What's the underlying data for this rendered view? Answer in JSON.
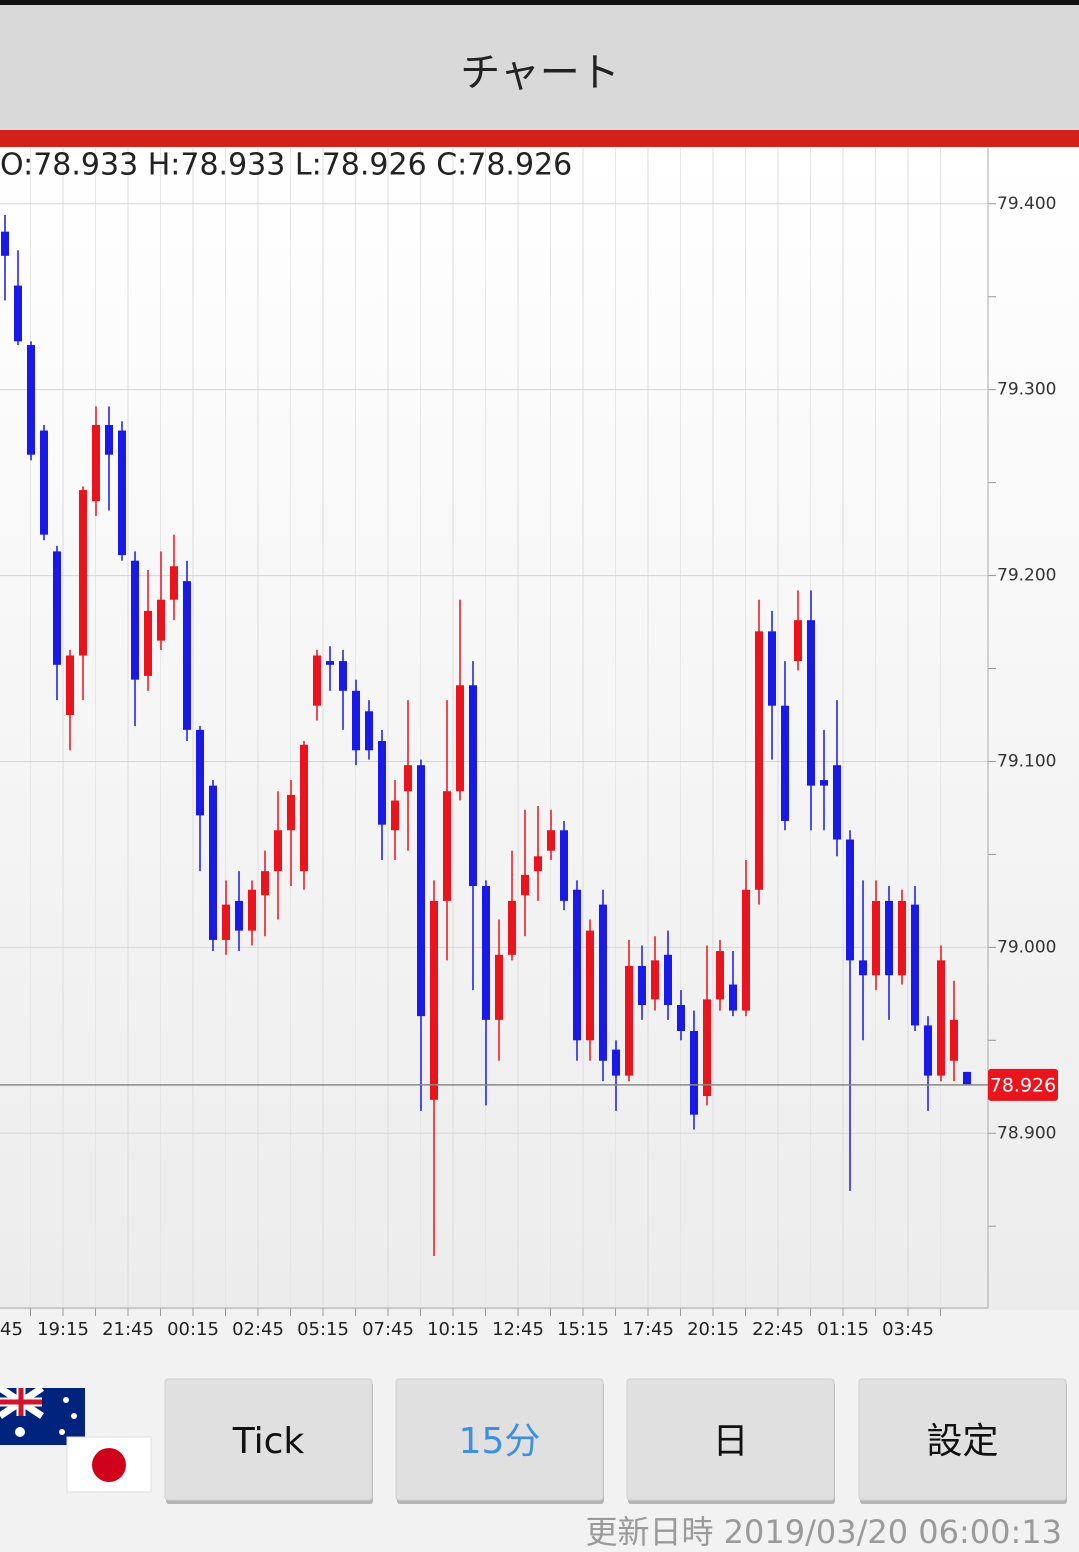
{
  "header": {
    "title": "チャート"
  },
  "chart_data": {
    "type": "candlestick",
    "ohlc_label": "O:78.933 H:78.933 L:78.926 C:78.926",
    "xlabels": [
      "45",
      "19:15",
      "21:45",
      "00:15",
      "02:45",
      "05:15",
      "07:45",
      "10:15",
      "12:45",
      "15:15",
      "17:45",
      "20:15",
      "22:45",
      "01:15",
      "03:45"
    ],
    "candles": [
      [
        79.385,
        79.394,
        79.348,
        79.372
      ],
      [
        79.356,
        79.375,
        79.324,
        79.326
      ],
      [
        79.324,
        79.326,
        79.262,
        79.265
      ],
      [
        79.278,
        79.281,
        79.219,
        79.222
      ],
      [
        79.213,
        79.216,
        79.133,
        79.152
      ],
      [
        79.125,
        79.16,
        79.106,
        79.157
      ],
      [
        79.157,
        79.248,
        79.133,
        79.246
      ],
      [
        79.24,
        79.291,
        79.232,
        79.281
      ],
      [
        79.281,
        79.291,
        79.235,
        79.265
      ],
      [
        79.278,
        79.283,
        79.208,
        79.211
      ],
      [
        79.208,
        79.213,
        79.119,
        79.144
      ],
      [
        79.146,
        79.203,
        79.138,
        79.181
      ],
      [
        79.165,
        79.213,
        79.16,
        79.187
      ],
      [
        79.187,
        79.222,
        79.176,
        79.205
      ],
      [
        79.197,
        79.208,
        79.111,
        79.117
      ],
      [
        79.117,
        79.119,
        79.041,
        79.071
      ],
      [
        79.087,
        79.09,
        78.998,
        79.004
      ],
      [
        79.004,
        79.036,
        78.996,
        79.023
      ],
      [
        79.025,
        79.041,
        78.998,
        79.009
      ],
      [
        79.009,
        79.036,
        79.001,
        79.031
      ],
      [
        79.028,
        79.052,
        79.006,
        79.041
      ],
      [
        79.041,
        79.084,
        79.015,
        79.063
      ],
      [
        79.063,
        79.09,
        79.033,
        79.082
      ],
      [
        79.041,
        79.111,
        79.031,
        79.109
      ],
      [
        79.13,
        79.16,
        79.122,
        79.157
      ],
      [
        79.154,
        79.162,
        79.138,
        79.152
      ],
      [
        79.154,
        79.16,
        79.117,
        79.138
      ],
      [
        79.138,
        79.144,
        79.098,
        79.106
      ],
      [
        79.127,
        79.133,
        79.101,
        79.106
      ],
      [
        79.111,
        79.117,
        79.047,
        79.066
      ],
      [
        79.063,
        79.09,
        79.047,
        79.079
      ],
      [
        79.084,
        79.133,
        79.052,
        79.098
      ],
      [
        79.098,
        79.101,
        78.912,
        78.963
      ],
      [
        78.918,
        79.036,
        78.834,
        79.025
      ],
      [
        79.025,
        79.133,
        78.993,
        79.084
      ],
      [
        79.084,
        79.187,
        79.079,
        79.141
      ],
      [
        79.141,
        79.154,
        78.977,
        79.033
      ],
      [
        79.033,
        79.036,
        78.915,
        78.961
      ],
      [
        78.961,
        79.015,
        78.939,
        78.996
      ],
      [
        78.996,
        79.052,
        78.993,
        79.025
      ],
      [
        79.028,
        79.074,
        79.006,
        79.039
      ],
      [
        79.041,
        79.076,
        79.025,
        79.049
      ],
      [
        79.052,
        79.074,
        79.047,
        79.063
      ],
      [
        79.063,
        79.068,
        79.02,
        79.025
      ],
      [
        79.031,
        79.036,
        78.939,
        78.95
      ],
      [
        78.95,
        79.015,
        78.939,
        79.009
      ],
      [
        79.023,
        79.031,
        78.928,
        78.939
      ],
      [
        78.945,
        78.95,
        78.912,
        78.931
      ],
      [
        78.931,
        79.004,
        78.928,
        78.99
      ],
      [
        78.99,
        79.001,
        78.961,
        78.969
      ],
      [
        78.972,
        79.006,
        78.966,
        78.993
      ],
      [
        78.996,
        79.009,
        78.961,
        78.969
      ],
      [
        78.969,
        78.977,
        78.95,
        78.955
      ],
      [
        78.955,
        78.966,
        78.902,
        78.91
      ],
      [
        78.92,
        79.001,
        78.915,
        78.972
      ],
      [
        78.972,
        79.004,
        78.966,
        78.998
      ],
      [
        78.98,
        78.998,
        78.963,
        78.966
      ],
      [
        78.966,
        79.047,
        78.963,
        79.031
      ],
      [
        79.031,
        79.187,
        79.023,
        79.17
      ],
      [
        79.17,
        79.181,
        79.101,
        79.13
      ],
      [
        79.13,
        79.154,
        79.063,
        79.068
      ],
      [
        79.154,
        79.192,
        79.149,
        79.176
      ],
      [
        79.176,
        79.192,
        79.063,
        79.087
      ],
      [
        79.09,
        79.117,
        79.063,
        79.087
      ],
      [
        79.098,
        79.133,
        79.049,
        79.058
      ],
      [
        79.058,
        79.063,
        78.869,
        78.993
      ],
      [
        78.993,
        79.036,
        78.95,
        78.985
      ],
      [
        78.985,
        79.036,
        78.977,
        79.025
      ],
      [
        79.025,
        79.033,
        78.961,
        78.985
      ],
      [
        78.985,
        79.031,
        78.98,
        79.025
      ],
      [
        79.023,
        79.033,
        78.955,
        78.958
      ],
      [
        78.958,
        78.963,
        78.912,
        78.931
      ],
      [
        78.931,
        79.001,
        78.928,
        78.993
      ],
      [
        78.939,
        78.982,
        78.928,
        78.961
      ],
      [
        78.933,
        78.933,
        78.926,
        78.926
      ]
    ],
    "up_color": "#e8141e",
    "down_color": "#1a1ae6",
    "ylim": [
      78.806,
      79.43
    ],
    "yticks": [
      {
        "value": 78.9,
        "label": "78.900"
      },
      {
        "value": 79.0,
        "label": "79.000"
      },
      {
        "value": 79.1,
        "label": "79.100"
      },
      {
        "value": 79.2,
        "label": "79.200"
      },
      {
        "value": 79.3,
        "label": "79.300"
      },
      {
        "value": 79.4,
        "label": "79.400"
      }
    ],
    "grid": true,
    "current_price": 78.926,
    "current_price_color": "#e8141e"
  },
  "buttons": [
    "Tick",
    "15分",
    "日",
    "設定"
  ],
  "selected_button": 1,
  "footer": {
    "updated": "更新日時 2019/03/20 06:00:13"
  }
}
